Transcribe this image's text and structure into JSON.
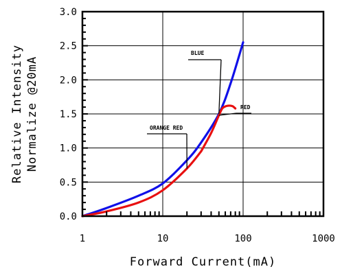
{
  "chart_data": {
    "type": "line",
    "title": "",
    "xlabel": "Forward Current(mA)",
    "ylabel_lines": [
      "Relative Intensity",
      "Normalize @20mA"
    ],
    "x_scale": "log",
    "xlim": [
      1,
      1000
    ],
    "ylim": [
      0,
      3.0
    ],
    "x_ticks": [
      "1",
      "10",
      "100",
      "1000"
    ],
    "y_ticks": [
      "0.0",
      "0.5",
      "1.0",
      "1.5",
      "2.0",
      "2.5",
      "3.0"
    ],
    "grid": true,
    "series": [
      {
        "name": "BLUE",
        "color": "#1010e8",
        "x": [
          1,
          2,
          5,
          10,
          20,
          30,
          50,
          70,
          100
        ],
        "y": [
          0.0,
          0.12,
          0.3,
          0.48,
          0.82,
          1.08,
          1.5,
          1.95,
          2.55
        ]
      },
      {
        "name": "ORANGE RED",
        "color": "#e81010",
        "x": [
          1,
          2,
          5,
          10,
          20,
          30
        ],
        "y": [
          0.0,
          0.07,
          0.2,
          0.38,
          0.7,
          0.95
        ]
      },
      {
        "name": "RED",
        "color": "#e81010",
        "x": [
          30,
          40,
          50,
          55,
          60,
          65,
          70,
          75,
          80
        ],
        "y": [
          0.95,
          1.22,
          1.48,
          1.58,
          1.61,
          1.62,
          1.62,
          1.61,
          1.58
        ]
      }
    ],
    "annotations": [
      {
        "text": "BLUE",
        "series": "BLUE"
      },
      {
        "text": "RED",
        "series": "RED"
      },
      {
        "text": "ORANGE RED",
        "series": "ORANGE RED"
      }
    ]
  }
}
